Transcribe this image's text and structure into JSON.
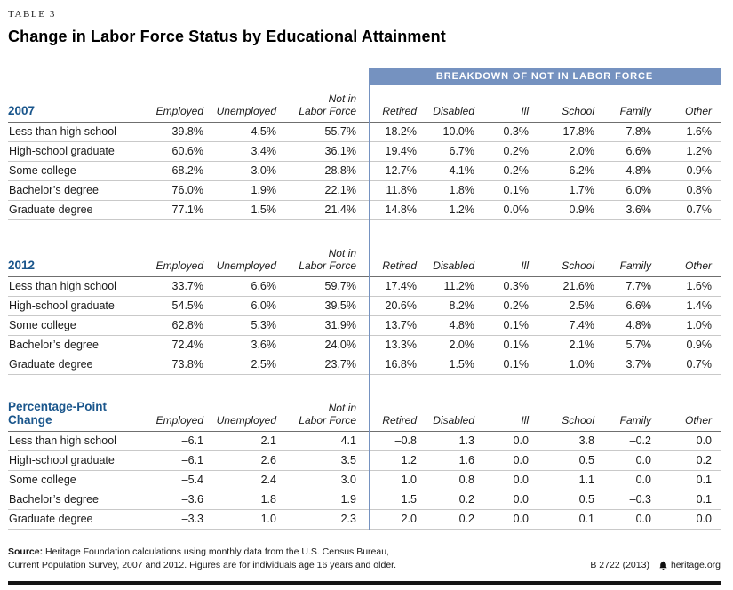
{
  "table_label": "TABLE 3",
  "title": "Change in Labor Force Status by Educational Attainment",
  "breakdown_header": "BREAKDOWN OF NOT IN LABOR FORCE",
  "columns_left": [
    "Employed",
    "Unemployed",
    "Not in\nLabor Force"
  ],
  "columns_right": [
    "Retired",
    "Disabled",
    "Ill",
    "School",
    "Family",
    "Other"
  ],
  "accent_colors": {
    "band_blue": "#7592c0",
    "section_label_blue": "#1a568c"
  },
  "sections": [
    {
      "id": "2007",
      "label": "2007",
      "rows": [
        {
          "label": "Less than high school",
          "values": [
            "39.8%",
            "4.5%",
            "55.7%",
            "18.2%",
            "10.0%",
            "0.3%",
            "17.8%",
            "7.8%",
            "1.6%"
          ]
        },
        {
          "label": "High-school graduate",
          "values": [
            "60.6%",
            "3.4%",
            "36.1%",
            "19.4%",
            "6.7%",
            "0.2%",
            "2.0%",
            "6.6%",
            "1.2%"
          ]
        },
        {
          "label": "Some college",
          "values": [
            "68.2%",
            "3.0%",
            "28.8%",
            "12.7%",
            "4.1%",
            "0.2%",
            "6.2%",
            "4.8%",
            "0.9%"
          ]
        },
        {
          "label": "Bachelor’s degree",
          "values": [
            "76.0%",
            "1.9%",
            "22.1%",
            "11.8%",
            "1.8%",
            "0.1%",
            "1.7%",
            "6.0%",
            "0.8%"
          ]
        },
        {
          "label": "Graduate degree",
          "values": [
            "77.1%",
            "1.5%",
            "21.4%",
            "14.8%",
            "1.2%",
            "0.0%",
            "0.9%",
            "3.6%",
            "0.7%"
          ]
        }
      ]
    },
    {
      "id": "2012",
      "label": "2012",
      "rows": [
        {
          "label": "Less than high school",
          "values": [
            "33.7%",
            "6.6%",
            "59.7%",
            "17.4%",
            "11.2%",
            "0.3%",
            "21.6%",
            "7.7%",
            "1.6%"
          ]
        },
        {
          "label": "High-school graduate",
          "values": [
            "54.5%",
            "6.0%",
            "39.5%",
            "20.6%",
            "8.2%",
            "0.2%",
            "2.5%",
            "6.6%",
            "1.4%"
          ]
        },
        {
          "label": "Some college",
          "values": [
            "62.8%",
            "5.3%",
            "31.9%",
            "13.7%",
            "4.8%",
            "0.1%",
            "7.4%",
            "4.8%",
            "1.0%"
          ]
        },
        {
          "label": "Bachelor’s degree",
          "values": [
            "72.4%",
            "3.6%",
            "24.0%",
            "13.3%",
            "2.0%",
            "0.1%",
            "2.1%",
            "5.7%",
            "0.9%"
          ]
        },
        {
          "label": "Graduate degree",
          "values": [
            "73.8%",
            "2.5%",
            "23.7%",
            "16.8%",
            "1.5%",
            "0.1%",
            "1.0%",
            "3.7%",
            "0.7%"
          ]
        }
      ]
    },
    {
      "id": "change",
      "label": "Percentage-Point\nChange",
      "rows": [
        {
          "label": "Less than high school",
          "values": [
            "–6.1",
            "2.1",
            "4.1",
            "–0.8",
            "1.3",
            "0.0",
            "3.8",
            "–0.2",
            "0.0"
          ]
        },
        {
          "label": "High-school graduate",
          "values": [
            "–6.1",
            "2.6",
            "3.5",
            "1.2",
            "1.6",
            "0.0",
            "0.5",
            "0.0",
            "0.2"
          ]
        },
        {
          "label": "Some college",
          "values": [
            "–5.4",
            "2.4",
            "3.0",
            "1.0",
            "0.8",
            "0.0",
            "1.1",
            "0.0",
            "0.1"
          ]
        },
        {
          "label": "Bachelor’s degree",
          "values": [
            "–3.6",
            "1.8",
            "1.9",
            "1.5",
            "0.2",
            "0.0",
            "0.5",
            "–0.3",
            "0.1"
          ]
        },
        {
          "label": "Graduate degree",
          "values": [
            "–3.3",
            "1.0",
            "2.3",
            "2.0",
            "0.2",
            "0.0",
            "0.1",
            "0.0",
            "0.0"
          ]
        }
      ]
    }
  ],
  "footer": {
    "source_label": "Source:",
    "source_text": "Heritage Foundation calculations using monthly data from the U.S. Census Bureau, Current Population Survey, 2007 and 2012. Figures are for individuals age 16 years and older.",
    "ref": "B 2722 (2013)",
    "site": "heritage.org"
  }
}
